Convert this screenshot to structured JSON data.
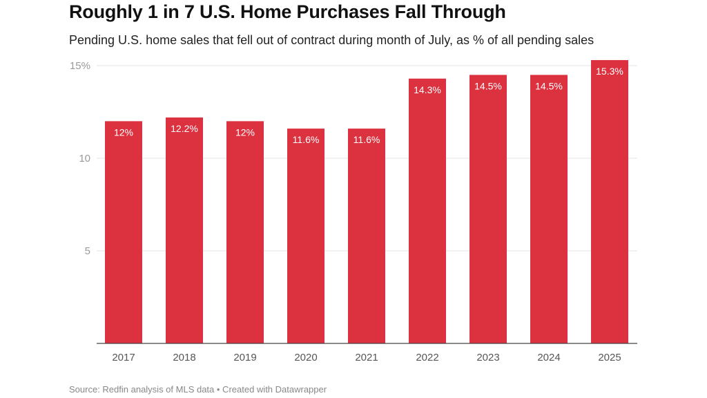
{
  "chart_data": {
    "type": "bar",
    "title": "Roughly 1 in 7 U.S. Home Purchases Fall Through",
    "subtitle": "Pending U.S. home sales that fell out of contract during month of July, as % of all pending sales",
    "source": "Source: Redfin analysis of MLS data • Created with Datawrapper",
    "categories": [
      "2017",
      "2018",
      "2019",
      "2020",
      "2021",
      "2022",
      "2023",
      "2024",
      "2025"
    ],
    "values": [
      12,
      12.2,
      12,
      11.6,
      11.6,
      14.3,
      14.5,
      14.5,
      15.3
    ],
    "data_labels": [
      "12%",
      "12.2%",
      "12%",
      "11.6%",
      "11.6%",
      "14.3%",
      "14.5%",
      "14.5%",
      "15.3%"
    ],
    "ylim": [
      0,
      15
    ],
    "yticks": [
      5,
      10,
      15
    ],
    "ytick_labels": [
      "5",
      "10",
      "15%"
    ],
    "grid": true,
    "bar_color": "#dc3240"
  }
}
